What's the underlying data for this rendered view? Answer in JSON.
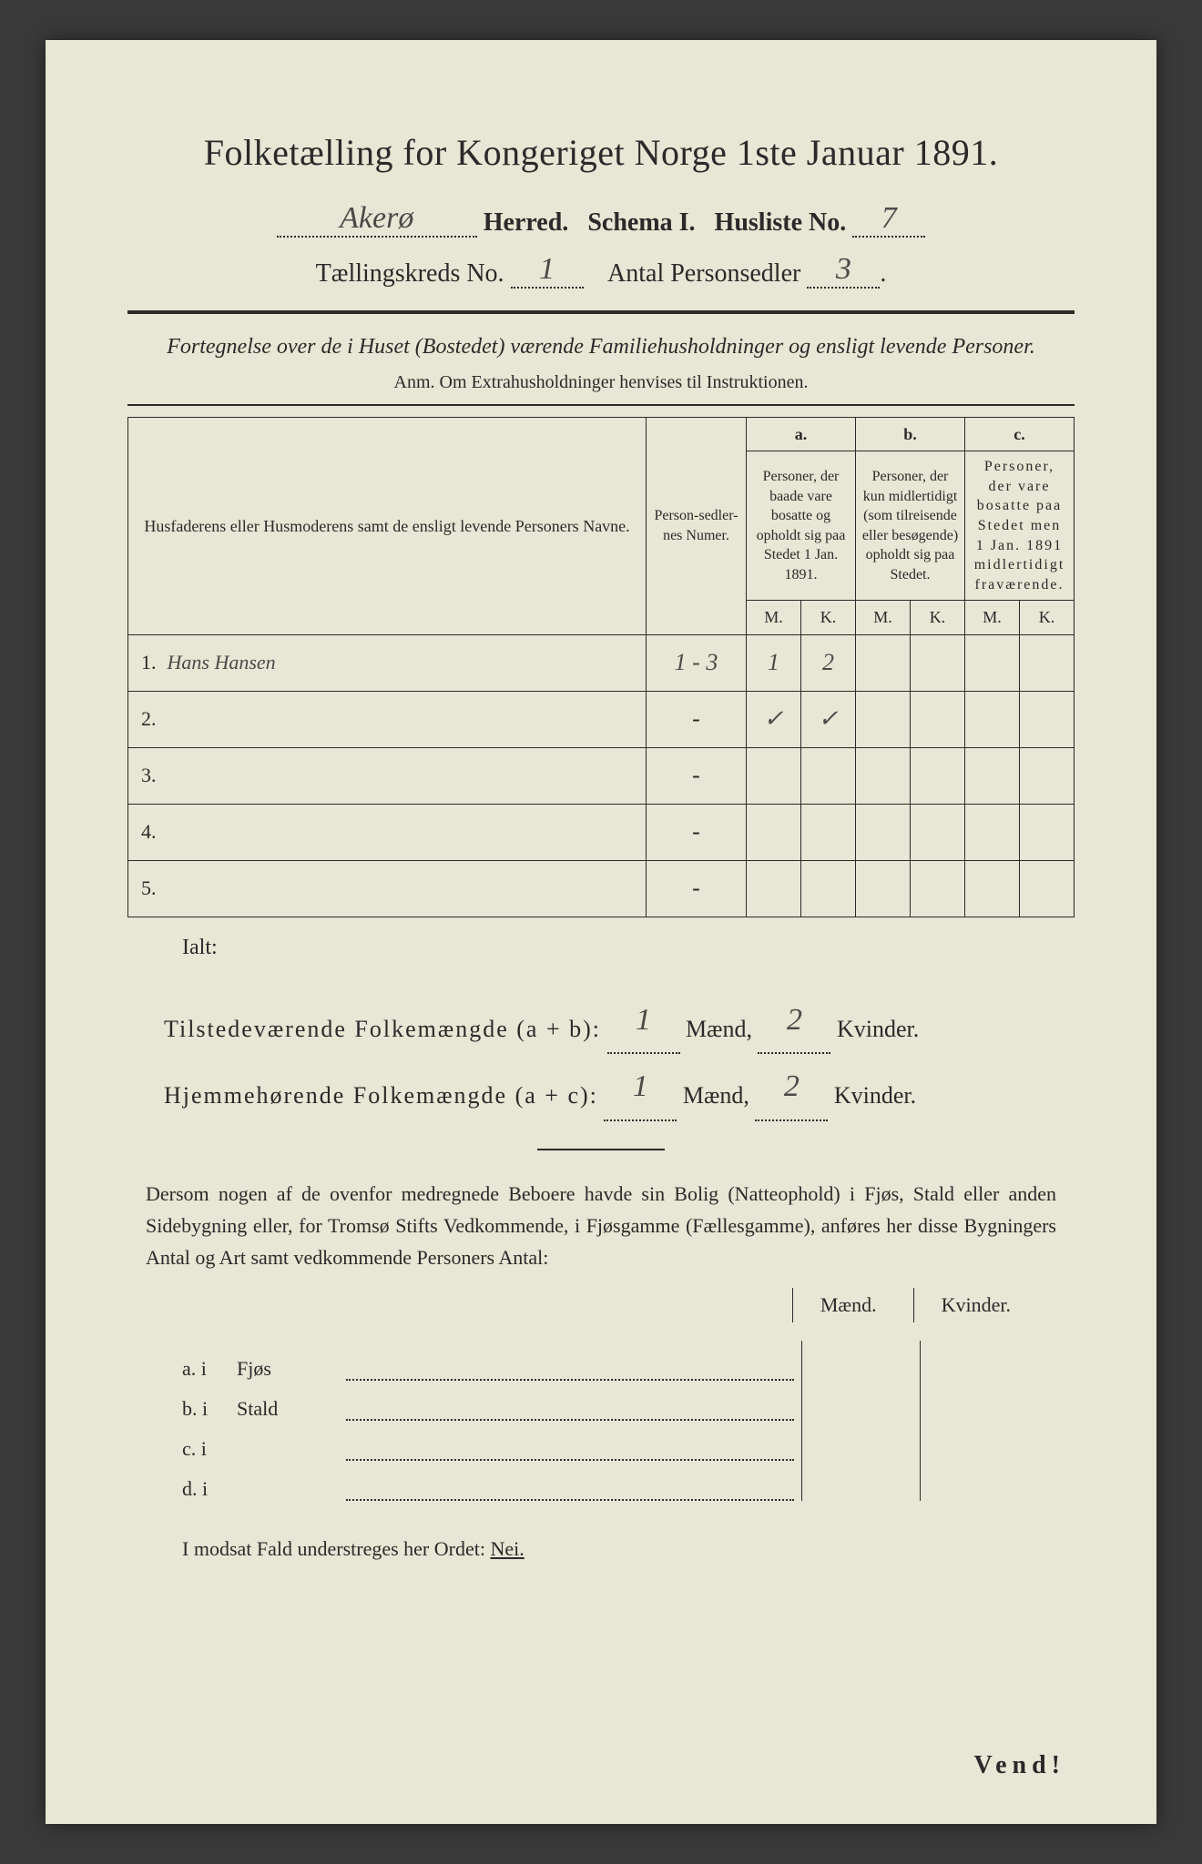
{
  "title": "Folketælling for Kongeriget Norge 1ste Januar 1891.",
  "header": {
    "herred_value": "Akerø",
    "herred_label": "Herred.",
    "schema_label": "Schema I.",
    "husliste_label": "Husliste No.",
    "husliste_value": "7",
    "kreds_label": "Tællingskreds No.",
    "kreds_value": "1",
    "sedler_label": "Antal Personsedler",
    "sedler_value": "3"
  },
  "subtitle": "Fortegnelse over de i Huset (Bostedet) værende Familiehusholdninger og ensligt levende Personer.",
  "anm": "Anm.   Om Extrahusholdninger henvises til Instruktionen.",
  "table": {
    "col_name": "Husfaderens eller Husmoderens samt de ensligt levende Personers Navne.",
    "col_num": "Person-sedler-nes Numer.",
    "col_a_top": "a.",
    "col_a": "Personer, der baade vare bosatte og opholdt sig paa Stedet 1 Jan. 1891.",
    "col_b_top": "b.",
    "col_b": "Personer, der kun midlertidigt (som tilreisende eller besøgende) opholdt sig paa Stedet.",
    "col_c_top": "c.",
    "col_c": "Personer, der vare bosatte paa Stedet men 1 Jan. 1891 midlertidigt fraværende.",
    "mk_m": "M.",
    "mk_k": "K.",
    "rows": [
      {
        "n": "1.",
        "name": "Hans Hansen",
        "num": "1 - 3",
        "am": "1",
        "ak": "2",
        "bm": "",
        "bk": "",
        "cm": "",
        "ck": ""
      },
      {
        "n": "2.",
        "name": "",
        "num": "-",
        "am": "✓",
        "ak": "✓",
        "bm": "",
        "bk": "",
        "cm": "",
        "ck": ""
      },
      {
        "n": "3.",
        "name": "",
        "num": "-",
        "am": "",
        "ak": "",
        "bm": "",
        "bk": "",
        "cm": "",
        "ck": ""
      },
      {
        "n": "4.",
        "name": "",
        "num": "-",
        "am": "",
        "ak": "",
        "bm": "",
        "bk": "",
        "cm": "",
        "ck": ""
      },
      {
        "n": "5.",
        "name": "",
        "num": "-",
        "am": "",
        "ak": "",
        "bm": "",
        "bk": "",
        "cm": "",
        "ck": ""
      }
    ]
  },
  "summary": {
    "ialt": "Ialt:",
    "line1_label": "Tilstedeværende Folkemængde (a + b):",
    "line1_m": "1",
    "line1_k": "2",
    "line2_label": "Hjemmehørende Folkemængde (a + c):",
    "line2_m": "1",
    "line2_k": "2",
    "maend": "Mænd,",
    "kvinder": "Kvinder."
  },
  "para": "Dersom nogen af de ovenfor medregnede Beboere havde sin Bolig (Natteophold) i Fjøs, Stald eller anden Sidebygning eller, for Tromsø Stifts Vedkommende, i Fjøsgamme (Fællesgamme), anføres her disse Bygningers Antal og Art samt vedkommende Personers Antal:",
  "bldg": {
    "head_m": "Mænd.",
    "head_k": "Kvinder.",
    "rows": [
      {
        "lead": "a.  i",
        "kind": "Fjøs"
      },
      {
        "lead": "b.  i",
        "kind": "Stald"
      },
      {
        "lead": "c.  i",
        "kind": ""
      },
      {
        "lead": "d.  i",
        "kind": ""
      }
    ]
  },
  "footer": "I modsat Fald understreges her Ordet:",
  "footer_nei": "Nei.",
  "vend": "Vend!"
}
